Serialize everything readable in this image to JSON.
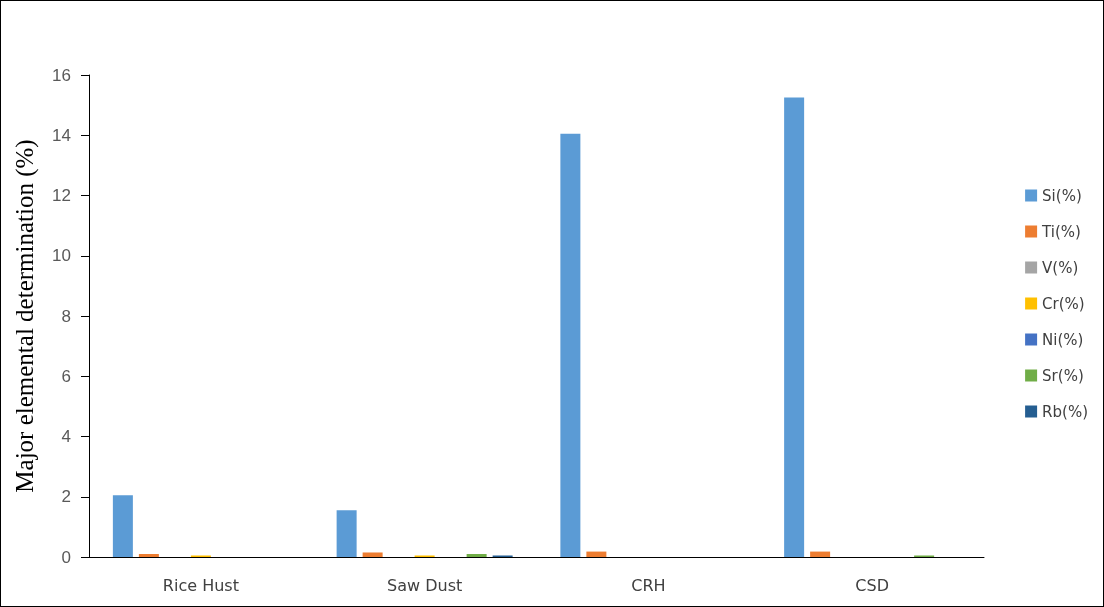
{
  "chart_data": {
    "type": "bar",
    "ylabel": "Major elemental determination (%)",
    "categories": [
      "Rice Hust",
      "Saw Dust",
      "CRH",
      "CSD"
    ],
    "series": [
      {
        "name": "Si(%)",
        "color": "#5b9bd5",
        "values": [
          2.05,
          1.55,
          14.05,
          15.25
        ]
      },
      {
        "name": "Ti(%)",
        "color": "#ed7d31",
        "values": [
          0.1,
          0.15,
          0.18,
          0.18
        ]
      },
      {
        "name": "V(%)",
        "color": "#a5a5a5",
        "values": [
          0,
          0,
          0,
          0
        ]
      },
      {
        "name": "Cr(%)",
        "color": "#ffc000",
        "values": [
          0.05,
          0.05,
          0,
          0
        ]
      },
      {
        "name": "Ni(%)",
        "color": "#4472c4",
        "values": [
          0,
          0,
          0,
          0
        ]
      },
      {
        "name": "Sr(%)",
        "color": "#70ad47",
        "values": [
          0,
          0.1,
          0,
          0.05
        ]
      },
      {
        "name": "Rb(%)",
        "color": "#255e91",
        "values": [
          0,
          0.05,
          0,
          0
        ]
      }
    ],
    "ylim": [
      0,
      16
    ],
    "yticks": [
      0,
      2,
      4,
      6,
      8,
      10,
      12,
      14,
      16
    ],
    "grid": false,
    "legend": "right"
  }
}
